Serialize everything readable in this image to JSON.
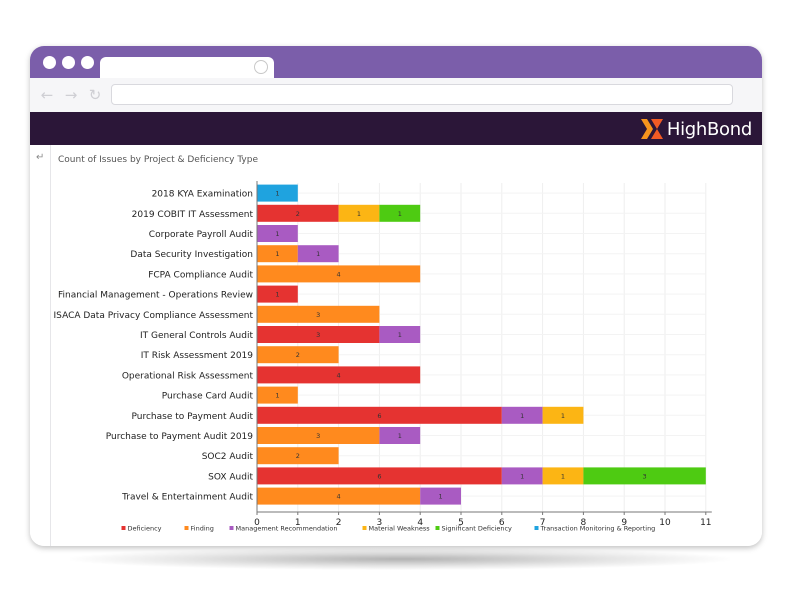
{
  "app": {
    "brand": "HighBond",
    "brand_color": "#2b1638",
    "accent": "#f7941d",
    "titlebar_color": "#7b5eaa"
  },
  "icons": [
    "back-arrow-icon",
    "forward-arrow-icon",
    "refresh-icon",
    "tab-loading-icon",
    "sidebar-expand-icon",
    "highbond-logo-icon"
  ],
  "chart_title": "Count of Issues by Project & Deficiency Type",
  "chart_data": {
    "type": "bar",
    "orientation": "horizontal",
    "stacked": true,
    "title": "Count of Issues by Project & Deficiency Type",
    "categories": [
      "2018 KYA Examination",
      "2019 COBIT IT Assessment",
      "Corporate Payroll Audit",
      "Data Security Investigation",
      "FCPA Compliance Audit",
      "Financial Management - Operations Review",
      "ISACA Data Privacy Compliance Assessment",
      "IT General Controls Audit",
      "IT Risk Assessment 2019",
      "Operational Risk Assessment",
      "Purchase Card Audit",
      "Purchase to Payment Audit",
      "Purchase to Payment Audit 2019",
      "SOC2 Audit",
      "SOX Audit",
      "Travel & Entertainment Audit"
    ],
    "series": [
      {
        "name": "Deficiency",
        "color": "#e53331",
        "values": [
          0,
          2,
          0,
          0,
          0,
          1,
          0,
          3,
          0,
          4,
          0,
          6,
          0,
          0,
          6,
          0
        ]
      },
      {
        "name": "Finding",
        "color": "#ff8a1e",
        "values": [
          0,
          0,
          0,
          1,
          4,
          0,
          3,
          0,
          2,
          0,
          1,
          0,
          3,
          2,
          0,
          4
        ]
      },
      {
        "name": "Management Recommendation",
        "color": "#a95bc2",
        "values": [
          0,
          0,
          1,
          1,
          0,
          0,
          0,
          1,
          0,
          0,
          0,
          1,
          1,
          0,
          1,
          1
        ]
      },
      {
        "name": "Material Weakness",
        "color": "#fcb514",
        "values": [
          0,
          1,
          0,
          0,
          0,
          0,
          0,
          0,
          0,
          0,
          0,
          1,
          0,
          0,
          1,
          0
        ]
      },
      {
        "name": "Significant Deficiency",
        "color": "#4ecb12",
        "values": [
          0,
          1,
          0,
          0,
          0,
          0,
          0,
          0,
          0,
          0,
          0,
          0,
          0,
          0,
          3,
          0
        ]
      },
      {
        "name": "Transaction Monitoring & Reporting",
        "color": "#1fa3df",
        "values": [
          1,
          0,
          0,
          0,
          0,
          0,
          0,
          0,
          0,
          0,
          0,
          0,
          0,
          0,
          0,
          0
        ]
      }
    ],
    "xlim": [
      0,
      11
    ],
    "xticks": [
      "0",
      "1",
      "2",
      "3",
      "4",
      "5",
      "6",
      "7",
      "8",
      "9",
      "10",
      "11"
    ],
    "grid": true,
    "legend": "bottom"
  }
}
